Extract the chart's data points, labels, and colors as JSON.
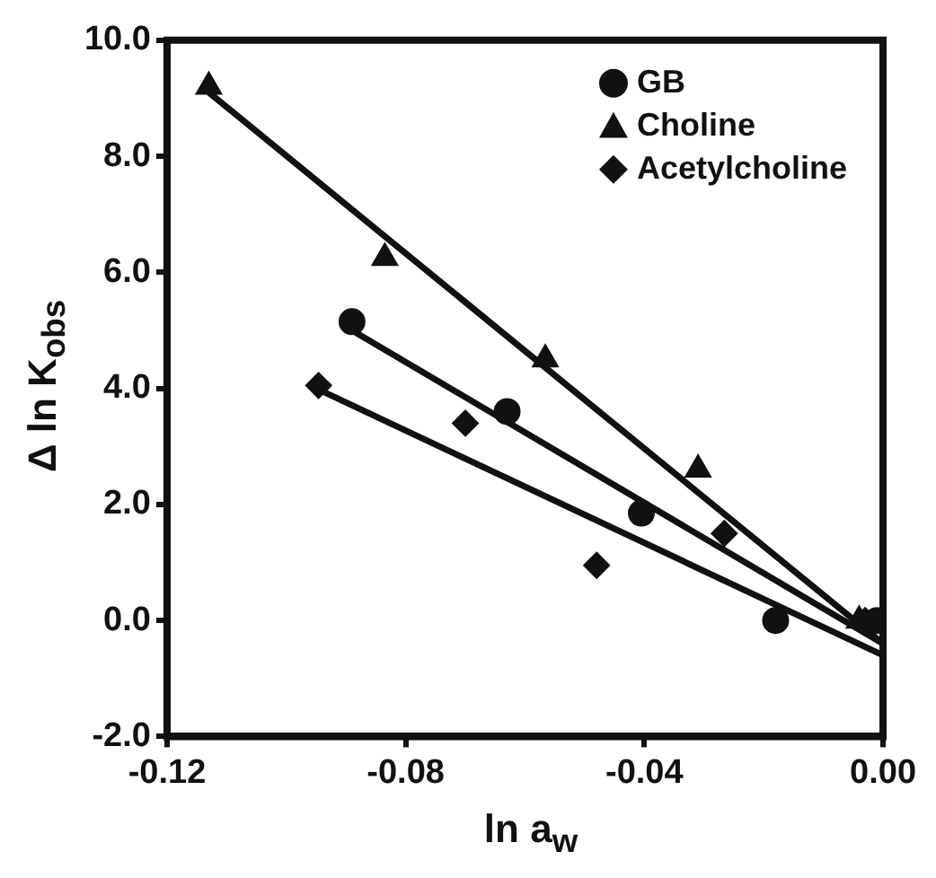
{
  "chart_data": {
    "type": "scatter",
    "xlabel": "ln a$_{w}$",
    "ylabel": "Δ ln K$_{obs}$",
    "xlim": [
      -0.12,
      0
    ],
    "ylim": [
      -2,
      10
    ],
    "xticks": [
      {
        "value": -0.12,
        "label": "-0.12"
      },
      {
        "value": -0.08,
        "label": "-0.08"
      },
      {
        "value": -0.04,
        "label": "-0.04"
      },
      {
        "value": 0,
        "label": "0.00"
      }
    ],
    "yticks": [
      {
        "value": -2,
        "label": "-2.0"
      },
      {
        "value": 0,
        "label": "0.0"
      },
      {
        "value": 2,
        "label": "2.0"
      },
      {
        "value": 4,
        "label": "4.0"
      },
      {
        "value": 6,
        "label": "6.0"
      },
      {
        "value": 8,
        "label": "8.0"
      },
      {
        "value": 10,
        "label": "10.0"
      }
    ],
    "grid": false,
    "legend": "top right",
    "series": [
      {
        "name": "GB",
        "marker": "circle",
        "color": "#111111",
        "x": [
          -0.089,
          -0.063,
          -0.0405,
          -0.018,
          -0.001
        ],
        "values": [
          5.15,
          3.6,
          1.85,
          0.0,
          0.0
        ]
      },
      {
        "name": "Choline",
        "marker": "triangle",
        "color": "#111111",
        "x": [
          -0.113,
          -0.0835,
          -0.0566,
          -0.031,
          -0.004
        ],
        "values": [
          9.2,
          6.25,
          4.5,
          2.6,
          0.0
        ]
      },
      {
        "name": "Acetylcholine",
        "marker": "diamond",
        "color": "#111111",
        "x": [
          -0.0946,
          -0.07,
          -0.048,
          -0.0266,
          -0.003
        ],
        "values": [
          4.05,
          3.4,
          0.95,
          1.5,
          0.0
        ]
      },
      {
        "type": "line",
        "marker": "none",
        "color": "#111111",
        "x": [
          -0.113,
          0
        ],
        "values": [
          9.1,
          -0.4
        ]
      },
      {
        "type": "line",
        "marker": "none",
        "color": "#111111",
        "x": [
          -0.089,
          0
        ],
        "values": [
          5.0,
          -0.4
        ]
      },
      {
        "type": "line",
        "marker": "none",
        "color": "#111111",
        "x": [
          -0.095,
          0
        ],
        "values": [
          4.0,
          -0.6
        ]
      }
    ]
  }
}
